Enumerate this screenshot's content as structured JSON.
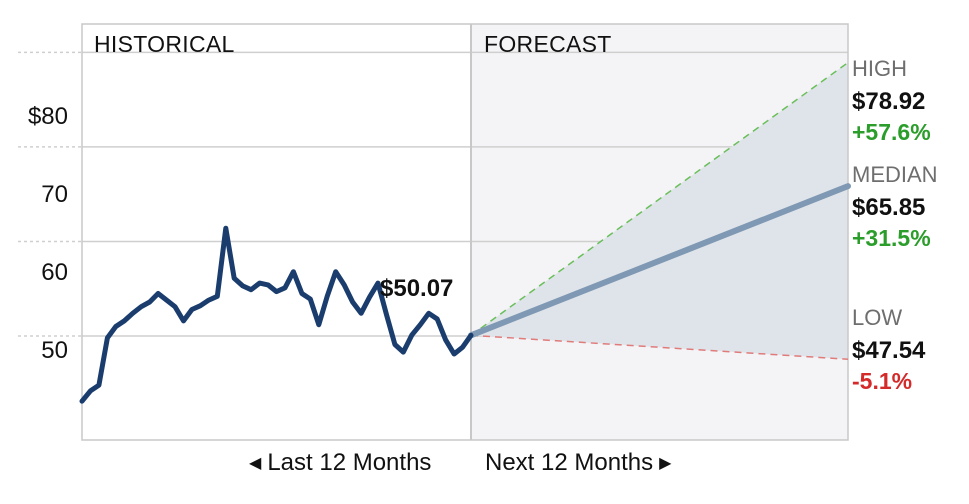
{
  "sections": {
    "historical_label": "HISTORICAL",
    "forecast_label": "FORECAST"
  },
  "nav": {
    "prev_label": "Last 12 Months",
    "next_label": "Next 12 Months",
    "prev_icon": "triangle-left-icon",
    "next_icon": "triangle-right-icon"
  },
  "last_price_label": "$50.07",
  "forecast": {
    "high": {
      "heading": "HIGH",
      "value": "$78.92",
      "change": "+57.6%"
    },
    "median": {
      "heading": "MEDIAN",
      "value": "$65.85",
      "change": "+31.5%"
    },
    "low": {
      "heading": "LOW",
      "value": "$47.54",
      "change": "-5.1%"
    }
  },
  "colors": {
    "history_line": "#1a3d6e",
    "median_line": "#7f98b3",
    "high_dashed": "#6abf5a",
    "low_dashed": "#e07b7b",
    "positive_text": "#2a9d2a",
    "negative_text": "#d42a2a",
    "forecast_band": "#dfe4ea",
    "forecast_bg": "#f4f4f6",
    "grid": "#cfcfcf"
  },
  "chart_data": {
    "type": "line",
    "ylim": [
      39,
      83
    ],
    "yticks": [
      {
        "value": 80,
        "label": "$80"
      },
      {
        "value": 70,
        "label": "70"
      },
      {
        "value": 60,
        "label": "60"
      },
      {
        "value": 50,
        "label": "50"
      }
    ],
    "grid": "horizontal",
    "historical": {
      "months": 12,
      "values": [
        43.1,
        44.2,
        44.8,
        49.8,
        51.0,
        51.6,
        52.4,
        53.1,
        53.6,
        54.5,
        53.8,
        53.1,
        51.6,
        52.8,
        53.2,
        53.8,
        54.2,
        61.4,
        56.1,
        55.3,
        54.9,
        55.6,
        55.4,
        54.7,
        55.1,
        56.8,
        54.5,
        53.9,
        51.2,
        54.2,
        56.8,
        55.4,
        53.6,
        52.4,
        54.1,
        55.6,
        52.3,
        49.1,
        48.3,
        50.1,
        51.2,
        52.4,
        51.8,
        49.6,
        48.1,
        48.8,
        50.07
      ]
    },
    "forecast": {
      "months": 12,
      "start": 50.07,
      "high": 78.92,
      "median": 65.85,
      "low": 47.54
    }
  }
}
